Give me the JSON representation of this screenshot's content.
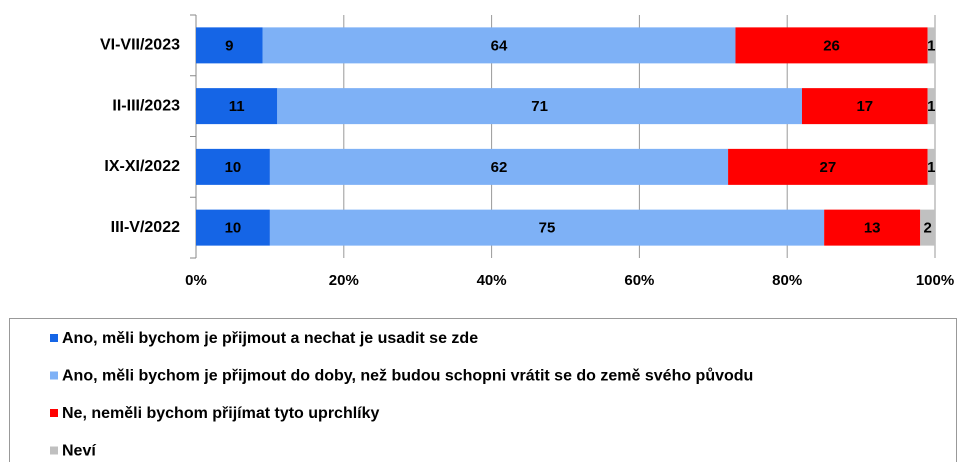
{
  "chart_data": {
    "type": "bar",
    "orientation": "horizontal",
    "stacked": true,
    "categories": [
      "VI-VII/2023",
      "II-III/2023",
      "IX-XI/2022",
      "III-V/2022"
    ],
    "series": [
      {
        "name": "Ano, měli bychom je přijmout a nechat je usadit se zde",
        "color": "#1565e6",
        "values": [
          9,
          11,
          10,
          10
        ]
      },
      {
        "name": "Ano, měli bychom je přijmout do doby, než budou schopni vrátit se do země svého původu",
        "color": "#7eb1f6",
        "values": [
          64,
          71,
          62,
          75
        ]
      },
      {
        "name": "Ne, neměli bychom přijímat tyto uprchlíky",
        "color": "#ff0000",
        "values": [
          26,
          17,
          27,
          13
        ]
      },
      {
        "name": "Neví",
        "color": "#c0c0c0",
        "values": [
          1,
          1,
          1,
          2
        ]
      }
    ],
    "xlim": [
      0,
      100
    ],
    "xticks": [
      {
        "value": 0,
        "label": "0%"
      },
      {
        "value": 20,
        "label": "20%"
      },
      {
        "value": 40,
        "label": "40%"
      },
      {
        "value": 60,
        "label": "60%"
      },
      {
        "value": 80,
        "label": "80%"
      },
      {
        "value": 100,
        "label": "100%"
      }
    ],
    "grid": true,
    "legend": "bottom"
  }
}
